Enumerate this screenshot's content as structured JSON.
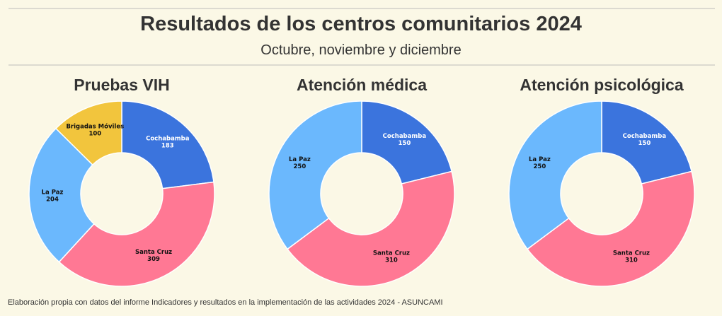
{
  "header": {
    "title": "Resultados de los centros comunitarios 2024",
    "subtitle": "Octubre, noviembre y diciembre"
  },
  "footer": {
    "source": "Elaboración propia con datos del informe Indicadores y resultados en la implementación de las actividades 2024 - ASUNCAMI"
  },
  "colors": {
    "Cochabamba": "#3b74dd",
    "Santa Cruz": "#ff7894",
    "La Paz": "#6bb8fd",
    "Brigadas Móviles": "#f2c53d"
  },
  "label_colors": {
    "Cochabamba": "#ffffff",
    "Santa Cruz": "#111111",
    "La Paz": "#111111",
    "Brigadas Móviles": "#111111"
  },
  "chart_data": [
    {
      "type": "pie",
      "title": "Pruebas VIH",
      "hole": true,
      "slices": [
        {
          "label": "Cochabamba",
          "value": 183
        },
        {
          "label": "Santa Cruz",
          "value": 309
        },
        {
          "label": "La Paz",
          "value": 204
        },
        {
          "label": "Brigadas Móviles",
          "value": 100
        }
      ]
    },
    {
      "type": "pie",
      "title": "Atención médica",
      "hole": true,
      "slices": [
        {
          "label": "Cochabamba",
          "value": 150
        },
        {
          "label": "Santa Cruz",
          "value": 310
        },
        {
          "label": "La Paz",
          "value": 250
        }
      ]
    },
    {
      "type": "pie",
      "title": "Atención psicológica",
      "hole": true,
      "slices": [
        {
          "label": "Cochabamba",
          "value": 150
        },
        {
          "label": "Santa Cruz",
          "value": 310
        },
        {
          "label": "La Paz",
          "value": 250
        }
      ]
    }
  ]
}
